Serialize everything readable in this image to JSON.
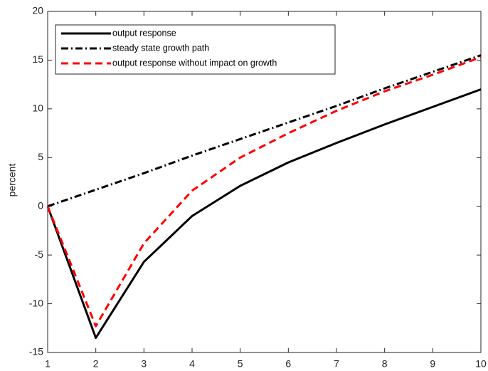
{
  "chart_data": {
    "type": "line",
    "y_label": "percent",
    "x": [
      1,
      2,
      3,
      4,
      5,
      6,
      7,
      8,
      9,
      10
    ],
    "series": [
      {
        "name": "output response",
        "color": "#000000",
        "style": "solid",
        "values": [
          0,
          -13.5,
          -5.7,
          -1.0,
          2.1,
          4.5,
          6.5,
          8.4,
          10.2,
          12.0
        ]
      },
      {
        "name": "steady state growth path",
        "color": "#000000",
        "style": "dashdot",
        "values": [
          0,
          1.7,
          3.4,
          5.2,
          6.9,
          8.6,
          10.3,
          12.1,
          13.8,
          15.5
        ]
      },
      {
        "name": "output response without impact on growth",
        "color": "#ff0000",
        "style": "dashed",
        "values": [
          0,
          -12.3,
          -3.8,
          1.6,
          5.0,
          7.5,
          9.8,
          11.8,
          13.5,
          15.3
        ]
      }
    ],
    "xlim": [
      1,
      10
    ],
    "xticks": [
      1,
      2,
      3,
      4,
      5,
      6,
      7,
      8,
      9,
      10
    ],
    "ylim": [
      -15,
      20
    ],
    "yticks": [
      -15,
      -10,
      -5,
      0,
      5,
      10,
      15,
      20
    ],
    "legend": "upper-left"
  }
}
